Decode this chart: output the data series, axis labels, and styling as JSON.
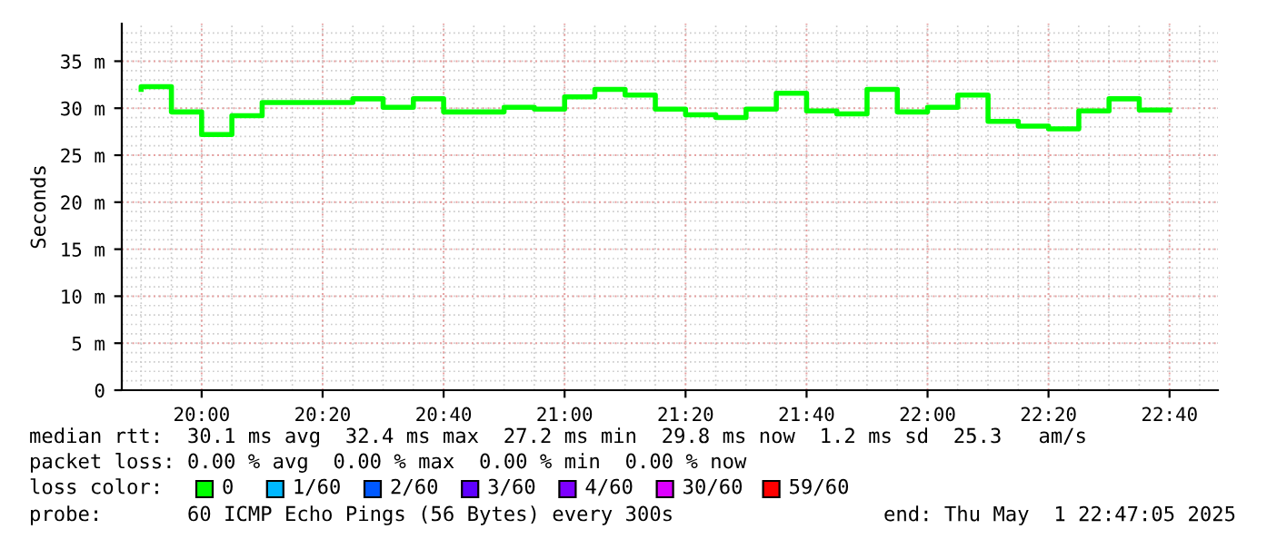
{
  "chart_data": {
    "type": "step",
    "ylabel": "Seconds",
    "x": [
      19.8333,
      19.9167,
      20.0,
      20.0833,
      20.1667,
      20.25,
      20.3333,
      20.4167,
      20.5,
      20.5833,
      20.6667,
      20.75,
      20.8333,
      20.9167,
      21.0,
      21.0833,
      21.1667,
      21.25,
      21.3333,
      21.4167,
      21.5,
      21.5833,
      21.6667,
      21.75,
      21.8333,
      21.9167,
      22.0,
      22.0833,
      22.1667,
      22.25,
      22.3333,
      22.4167,
      22.5,
      22.5833,
      22.6667
    ],
    "series": [
      {
        "name": "0",
        "color": "#00ff00",
        "values": [
          32.0,
          32.3,
          29.6,
          27.2,
          29.2,
          30.6,
          30.6,
          30.6,
          31.0,
          30.1,
          31.0,
          29.6,
          29.6,
          30.1,
          29.9,
          31.2,
          32.0,
          31.4,
          29.9,
          29.3,
          29.0,
          29.9,
          31.6,
          29.7,
          29.4,
          32.0,
          29.6,
          30.1,
          31.4,
          28.6,
          28.1,
          27.8,
          29.7,
          31.0,
          29.8
        ]
      },
      {
        "name": "1/60",
        "color": "#00b8ff",
        "values": [
          null,
          null,
          null,
          null,
          null,
          null,
          null,
          null,
          null,
          null,
          null,
          null,
          null,
          null,
          null,
          null,
          null,
          null,
          null,
          null,
          null,
          null,
          null,
          null,
          null,
          null,
          null,
          null,
          null,
          null,
          null,
          null,
          null,
          null,
          null
        ]
      },
      {
        "name": "2/60",
        "color": "#0059ff",
        "values": [
          null,
          null,
          null,
          null,
          null,
          null,
          null,
          null,
          null,
          null,
          null,
          null,
          null,
          null,
          null,
          null,
          null,
          null,
          null,
          null,
          null,
          null,
          null,
          null,
          null,
          null,
          null,
          null,
          null,
          null,
          null,
          null,
          null,
          null,
          null
        ]
      },
      {
        "name": "3/60",
        "color": "#5e00ff",
        "values": [
          null,
          null,
          null,
          null,
          null,
          null,
          null,
          null,
          null,
          null,
          null,
          null,
          null,
          null,
          null,
          null,
          null,
          null,
          null,
          null,
          null,
          null,
          null,
          null,
          null,
          null,
          null,
          null,
          null,
          null,
          null,
          null,
          null,
          null,
          null
        ]
      },
      {
        "name": "4/60",
        "color": "#7e00ff",
        "values": [
          null,
          null,
          null,
          null,
          null,
          null,
          null,
          null,
          null,
          null,
          null,
          null,
          null,
          null,
          null,
          null,
          null,
          null,
          null,
          null,
          null,
          null,
          null,
          null,
          null,
          null,
          null,
          null,
          null,
          null,
          null,
          null,
          null,
          null,
          null
        ]
      },
      {
        "name": "30/60",
        "color": "#dd00ff",
        "values": [
          null,
          null,
          null,
          null,
          null,
          null,
          null,
          null,
          null,
          null,
          null,
          null,
          null,
          null,
          null,
          null,
          null,
          null,
          null,
          null,
          null,
          null,
          null,
          null,
          null,
          null,
          null,
          null,
          null,
          null,
          null,
          null,
          null,
          null,
          null
        ]
      },
      {
        "name": "59/60",
        "color": "#ff0000",
        "values": [
          null,
          null,
          null,
          null,
          null,
          null,
          null,
          null,
          null,
          null,
          null,
          null,
          null,
          null,
          null,
          null,
          null,
          null,
          null,
          null,
          null,
          null,
          null,
          null,
          null,
          null,
          null,
          null,
          null,
          null,
          null,
          null,
          null,
          null,
          null
        ]
      }
    ],
    "xlim": [
      19.78,
      22.8
    ],
    "xticks": [
      {
        "value": 20.0,
        "label": "20:00"
      },
      {
        "value": 20.3333,
        "label": "20:20"
      },
      {
        "value": 20.6667,
        "label": "20:40"
      },
      {
        "value": 21.0,
        "label": "21:00"
      },
      {
        "value": 21.3333,
        "label": "21:20"
      },
      {
        "value": 21.6667,
        "label": "21:40"
      },
      {
        "value": 22.0,
        "label": "22:00"
      },
      {
        "value": 22.3333,
        "label": "22:20"
      },
      {
        "value": 22.6667,
        "label": "22:40"
      }
    ],
    "ylim": [
      0,
      39
    ],
    "yticks": [
      0,
      {
        "value": 5,
        "label": "5 m"
      },
      {
        "value": 10,
        "label": "10 m"
      },
      {
        "value": 15,
        "label": "15 m"
      },
      {
        "value": 20,
        "label": "20 m"
      },
      {
        "value": 25,
        "label": "25 m"
      },
      {
        "value": 30,
        "label": "30 m"
      },
      {
        "value": 35,
        "label": "35 m"
      }
    ],
    "grid": true,
    "legend": "bottom",
    "annotations": [
      "median rtt:  30.1 ms avg  32.4 ms max  27.2 ms min  29.8 ms now  1.2 ms sd  25.3   am/s",
      "packet loss: 0.00 % avg  0.00 % max  0.00 % min  0.00 % now",
      "loss color:",
      "probe:       60 ICMP Echo Pings (56 Bytes) every 300s",
      "end: Thu May  1 22:47:05 2025"
    ]
  }
}
